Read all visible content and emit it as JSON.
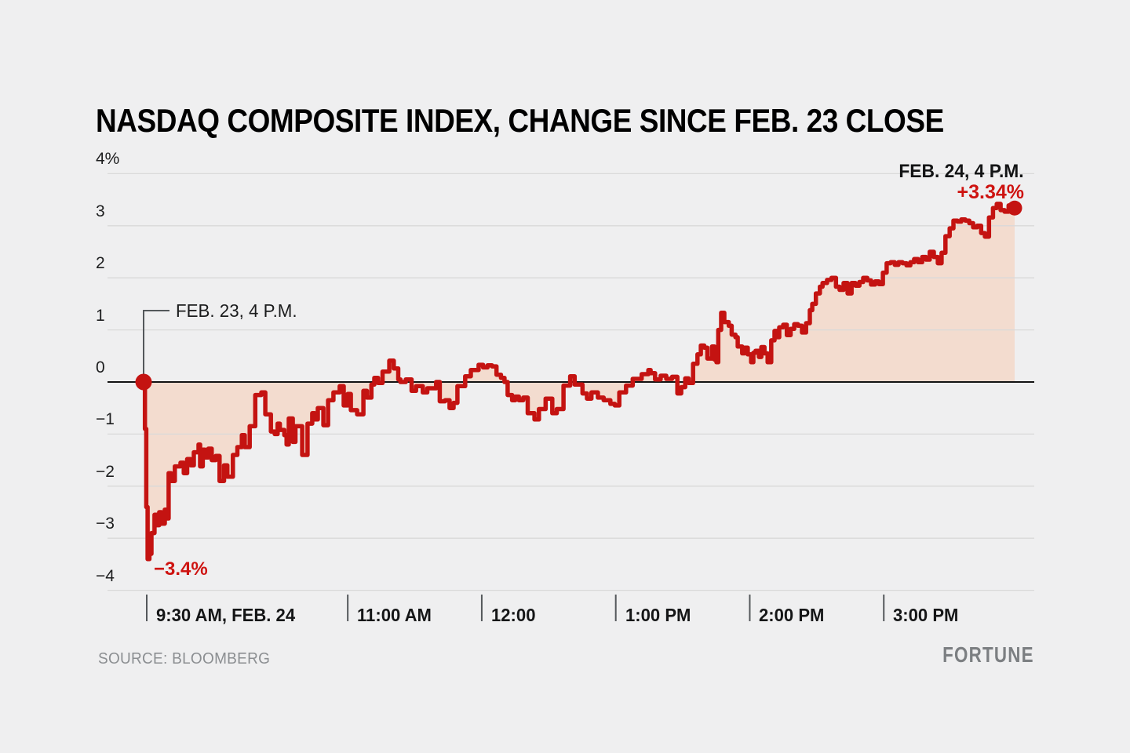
{
  "page": {
    "background": "#efeff0"
  },
  "footer": {
    "source_label": "SOURCE: BLOOMBERG",
    "brand": "FORTUNE"
  },
  "chart_data": {
    "type": "line",
    "title": "NASDAQ COMPOSITE INDEX, CHANGE SINCE FEB. 23 CLOSE",
    "x_unit": "minutes since 9:30 AM Feb. 24",
    "xlim_minutes": [
      0,
      390
    ],
    "ylim": [
      -4,
      4
    ],
    "grid": true,
    "baseline": 0,
    "x_axis": {
      "ticks": [
        {
          "t": 0,
          "label": "9:30 AM, FEB. 24"
        },
        {
          "t": 90,
          "label": "11:00 AM"
        },
        {
          "t": 150,
          "label": "12:00"
        },
        {
          "t": 210,
          "label": "1:00 PM"
        },
        {
          "t": 270,
          "label": "2:00 PM"
        },
        {
          "t": 330,
          "label": "3:00 PM"
        }
      ]
    },
    "y_axis": {
      "ticks": [
        {
          "v": 4,
          "label": "4%"
        },
        {
          "v": 3,
          "label": "3"
        },
        {
          "v": 2,
          "label": "2"
        },
        {
          "v": 1,
          "label": "1"
        },
        {
          "v": 0,
          "label": "0"
        },
        {
          "v": -1,
          "label": "−1"
        },
        {
          "v": -2,
          "label": "−2"
        },
        {
          "v": -3,
          "label": "−3"
        },
        {
          "v": -4,
          "label": "−4"
        }
      ]
    },
    "annotations": {
      "start": {
        "label": "FEB. 23, 4 P.M.",
        "t": 0,
        "v": 0
      },
      "end": {
        "label": "FEB. 24, 4 P.M.",
        "value_label": "+3.34%",
        "t": 390,
        "v": 3.34
      },
      "low": {
        "label": "−3.4%",
        "t": 1.8,
        "v": -3.4
      }
    },
    "colors": {
      "line": "#c41311",
      "fill": "#f3dccf",
      "accent_text": "#ce1310",
      "grid": "#d9d9d9",
      "zero_line": "#131313",
      "callout": "#54585b"
    },
    "series": [
      {
        "name": "NASDAQ Composite Index, % change since Feb. 23 close",
        "points": [
          [
            0,
            0
          ],
          [
            0.6,
            -0.9
          ],
          [
            1.2,
            -2.4
          ],
          [
            1.8,
            -3.4
          ],
          [
            2.6,
            -3.3
          ],
          [
            3.5,
            -2.9
          ],
          [
            4.9,
            -2.55
          ],
          [
            6,
            -2.75
          ],
          [
            7,
            -2.5
          ],
          [
            8,
            -2.72
          ],
          [
            9.5,
            -2.45
          ],
          [
            10.5,
            -2.62
          ],
          [
            11.2,
            -1.75
          ],
          [
            12.3,
            -1.9
          ],
          [
            14,
            -1.62
          ],
          [
            16.5,
            -1.55
          ],
          [
            18,
            -1.75
          ],
          [
            19.5,
            -1.48
          ],
          [
            21,
            -1.6
          ],
          [
            22.5,
            -1.35
          ],
          [
            24.6,
            -1.2
          ],
          [
            25.3,
            -1.62
          ],
          [
            26.5,
            -1.3
          ],
          [
            27.5,
            -1.45
          ],
          [
            29,
            -1.28
          ],
          [
            30.5,
            -1.5
          ],
          [
            32.3,
            -1.42
          ],
          [
            34,
            -1.9
          ],
          [
            36,
            -1.6
          ],
          [
            37.5,
            -1.82
          ],
          [
            40,
            -1.4
          ],
          [
            42,
            -1.25
          ],
          [
            44,
            -1.02
          ],
          [
            45.3,
            -1.25
          ],
          [
            47.5,
            -0.85
          ],
          [
            50,
            -0.25
          ],
          [
            52.7,
            -0.2
          ],
          [
            54.5,
            -0.62
          ],
          [
            57,
            -0.95
          ],
          [
            58.7,
            -1.0
          ],
          [
            60,
            -0.8
          ],
          [
            61,
            -0.92
          ],
          [
            63,
            -1.02
          ],
          [
            64,
            -1.2
          ],
          [
            65,
            -0.7
          ],
          [
            66.8,
            -1.15
          ],
          [
            68,
            -0.85
          ],
          [
            71,
            -1.4
          ],
          [
            73.4,
            -0.8
          ],
          [
            75.5,
            -0.6
          ],
          [
            76.6,
            -0.72
          ],
          [
            78,
            -0.5
          ],
          [
            80.5,
            -0.83
          ],
          [
            82.6,
            -0.35
          ],
          [
            85,
            -0.2
          ],
          [
            87.8,
            -0.08
          ],
          [
            89.6,
            -0.45
          ],
          [
            91.4,
            -0.23
          ],
          [
            92.8,
            -0.54
          ],
          [
            95.6,
            -0.62
          ],
          [
            98.4,
            -0.17
          ],
          [
            100,
            -0.3
          ],
          [
            102,
            -0.05
          ],
          [
            103.3,
            0.08
          ],
          [
            105,
            -0.02
          ],
          [
            107,
            0.2
          ],
          [
            110,
            0.41
          ],
          [
            112,
            0.26
          ],
          [
            114,
            0.05
          ],
          [
            115,
            0.0
          ],
          [
            117.4,
            0.05
          ],
          [
            120,
            -0.17
          ],
          [
            122,
            -0.08
          ],
          [
            125,
            -0.2
          ],
          [
            127,
            -0.12
          ],
          [
            131,
            0.0
          ],
          [
            132.6,
            -0.37
          ],
          [
            135,
            -0.35
          ],
          [
            137,
            -0.5
          ],
          [
            138.8,
            -0.4
          ],
          [
            140.5,
            -0.08
          ],
          [
            144,
            0.11
          ],
          [
            146.5,
            0.23
          ],
          [
            150,
            0.33
          ],
          [
            152,
            0.28
          ],
          [
            154,
            0.32
          ],
          [
            156,
            0.3
          ],
          [
            158,
            0.14
          ],
          [
            160,
            0.08
          ],
          [
            161.6,
            0.0
          ],
          [
            163,
            -0.25
          ],
          [
            165,
            -0.35
          ],
          [
            166.4,
            -0.28
          ],
          [
            168,
            -0.35
          ],
          [
            170,
            -0.3
          ],
          [
            172,
            -0.6
          ],
          [
            175,
            -0.72
          ],
          [
            177,
            -0.52
          ],
          [
            180,
            -0.32
          ],
          [
            183,
            -0.6
          ],
          [
            185,
            -0.52
          ],
          [
            188,
            -0.07
          ],
          [
            191,
            0.11
          ],
          [
            193,
            -0.05
          ],
          [
            196.5,
            -0.22
          ],
          [
            198.5,
            -0.32
          ],
          [
            200.5,
            -0.2
          ],
          [
            203.4,
            -0.3
          ],
          [
            206,
            -0.35
          ],
          [
            209,
            -0.42
          ],
          [
            211,
            -0.45
          ],
          [
            213,
            -0.2
          ],
          [
            216,
            -0.07
          ],
          [
            219,
            0.06
          ],
          [
            223,
            0.15
          ],
          [
            226,
            0.23
          ],
          [
            227,
            0.17
          ],
          [
            229,
            0.05
          ],
          [
            231.5,
            0.12
          ],
          [
            234,
            0.06
          ],
          [
            236.6,
            0.1
          ],
          [
            239,
            -0.22
          ],
          [
            240.7,
            -0.1
          ],
          [
            242.5,
            0.07
          ],
          [
            244,
            -0.02
          ],
          [
            246,
            0.35
          ],
          [
            248,
            0.53
          ],
          [
            249.5,
            0.7
          ],
          [
            251,
            0.66
          ],
          [
            252.4,
            0.45
          ],
          [
            254.5,
            0.68
          ],
          [
            255.6,
            0.43
          ],
          [
            256.5,
            0.38
          ],
          [
            257.3,
            1.0
          ],
          [
            258.6,
            1.33
          ],
          [
            260,
            1.15
          ],
          [
            262,
            1.08
          ],
          [
            263.3,
            0.91
          ],
          [
            265,
            0.86
          ],
          [
            266,
            0.68
          ],
          [
            268,
            0.55
          ],
          [
            269,
            0.66
          ],
          [
            270.5,
            0.53
          ],
          [
            272,
            0.38
          ],
          [
            273,
            0.56
          ],
          [
            274,
            0.6
          ],
          [
            275.5,
            0.48
          ],
          [
            276.6,
            0.67
          ],
          [
            278,
            0.55
          ],
          [
            279.4,
            0.38
          ],
          [
            281,
            0.8
          ],
          [
            282.5,
            0.98
          ],
          [
            283.6,
            0.86
          ],
          [
            284.6,
            1.05
          ],
          [
            286.4,
            1.1
          ],
          [
            288,
            0.9
          ],
          [
            289.7,
            1.02
          ],
          [
            291.3,
            1.11
          ],
          [
            293,
            1.08
          ],
          [
            294.8,
            0.95
          ],
          [
            296.6,
            1.13
          ],
          [
            298.3,
            1.38
          ],
          [
            299.4,
            1.5
          ],
          [
            301,
            1.7
          ],
          [
            302.8,
            1.83
          ],
          [
            304,
            1.9
          ],
          [
            306,
            1.96
          ],
          [
            308,
            2.0
          ],
          [
            310,
            1.83
          ],
          [
            311.6,
            1.77
          ],
          [
            313.4,
            1.9
          ],
          [
            315.2,
            1.7
          ],
          [
            317,
            1.9
          ],
          [
            318.7,
            1.85
          ],
          [
            320.5,
            1.92
          ],
          [
            322.2,
            2.0
          ],
          [
            324,
            1.95
          ],
          [
            325.7,
            1.87
          ],
          [
            327.5,
            1.93
          ],
          [
            329.2,
            1.88
          ],
          [
            331,
            2.1
          ],
          [
            332.7,
            2.28
          ],
          [
            334.5,
            2.3
          ],
          [
            336.3,
            2.25
          ],
          [
            338,
            2.3
          ],
          [
            339.8,
            2.28
          ],
          [
            341.6,
            2.24
          ],
          [
            343.3,
            2.3
          ],
          [
            345,
            2.36
          ],
          [
            346.8,
            2.3
          ],
          [
            348.6,
            2.4
          ],
          [
            350.3,
            2.35
          ],
          [
            352,
            2.5
          ],
          [
            353.8,
            2.4
          ],
          [
            355.6,
            2.28
          ],
          [
            357.3,
            2.48
          ],
          [
            359,
            2.8
          ],
          [
            360.9,
            2.95
          ],
          [
            362.6,
            3.1
          ],
          [
            364.4,
            3.08
          ],
          [
            366.1,
            3.12
          ],
          [
            367.9,
            3.1
          ],
          [
            369.7,
            3.05
          ],
          [
            371.4,
            2.97
          ],
          [
            373.2,
            3.0
          ],
          [
            375,
            2.86
          ],
          [
            376.7,
            2.79
          ],
          [
            378.5,
            3.16
          ],
          [
            380.3,
            3.34
          ],
          [
            382,
            3.42
          ],
          [
            383.7,
            3.3
          ],
          [
            385.5,
            3.27
          ],
          [
            387.3,
            3.39
          ],
          [
            388.6,
            3.28
          ],
          [
            390,
            3.34
          ]
        ]
      }
    ]
  }
}
